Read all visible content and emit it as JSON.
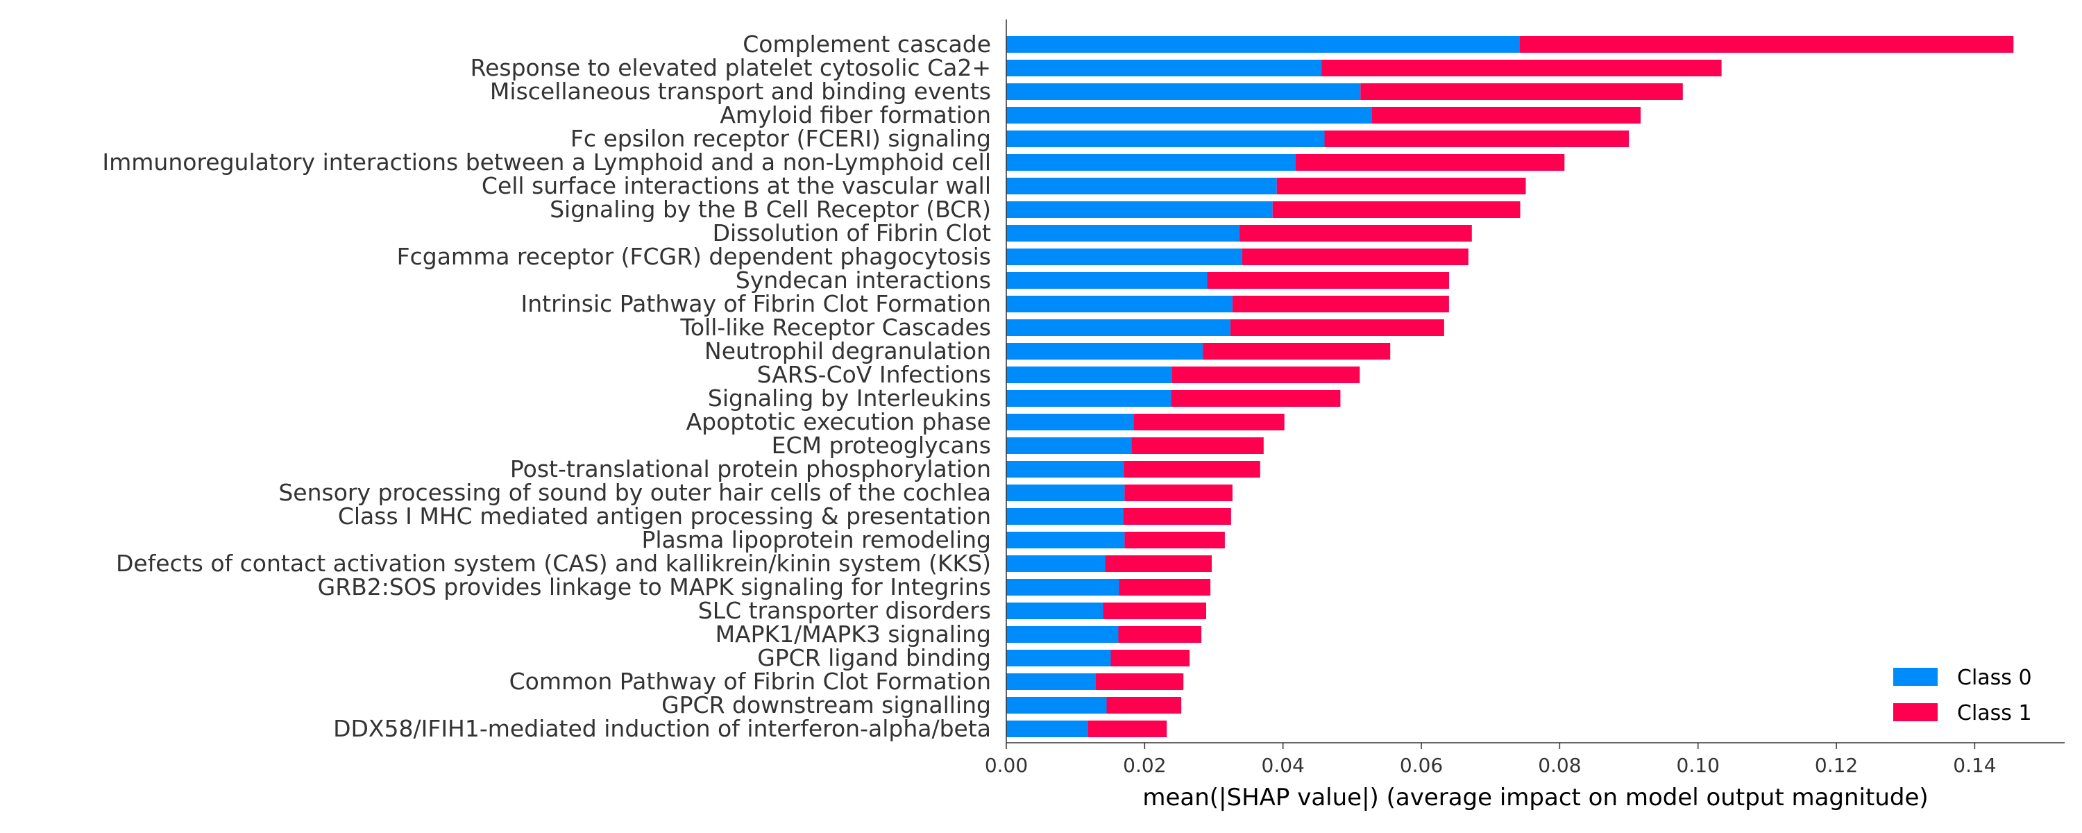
{
  "chart_data": {
    "type": "bar",
    "orientation": "horizontal",
    "stacked": true,
    "categories": [
      "Complement cascade",
      "Response to elevated platelet cytosolic Ca2+",
      "Miscellaneous transport and binding events",
      "Amyloid fiber formation",
      "Fc epsilon receptor (FCERI) signaling",
      "Immunoregulatory interactions between a Lymphoid and a non-Lymphoid cell",
      "Cell surface interactions at the vascular wall",
      "Signaling by the B Cell Receptor (BCR)",
      "Dissolution of Fibrin Clot",
      "Fcgamma receptor (FCGR) dependent phagocytosis",
      "Syndecan interactions",
      "Intrinsic Pathway of Fibrin Clot Formation",
      "Toll-like Receptor Cascades",
      "Neutrophil degranulation",
      "SARS-CoV Infections",
      "Signaling by Interleukins",
      "Apoptotic execution phase",
      "ECM proteoglycans",
      "Post-translational protein phosphorylation",
      "Sensory processing of sound by outer hair cells of the cochlea",
      "Class I MHC mediated antigen processing & presentation",
      "Plasma lipoprotein remodeling",
      "Defects of contact activation system (CAS) and kallikrein/kinin system (KKS)",
      "GRB2:SOS provides linkage to MAPK signaling for Integrins ",
      "SLC transporter disorders",
      "MAPK1/MAPK3 signaling",
      "GPCR ligand binding",
      "Common Pathway of Fibrin Clot Formation",
      "GPCR downstream signalling",
      "DDX58/IFIH1-mediated induction of interferon-alpha/beta"
    ],
    "series": [
      {
        "name": "Class 0",
        "color": "#008bfb",
        "values": [
          0.0742,
          0.0456,
          0.0512,
          0.0528,
          0.046,
          0.0418,
          0.0391,
          0.0385,
          0.0337,
          0.0341,
          0.029,
          0.0327,
          0.0324,
          0.0284,
          0.0239,
          0.0238,
          0.0184,
          0.0181,
          0.017,
          0.0171,
          0.0169,
          0.0171,
          0.0143,
          0.0163,
          0.014,
          0.0162,
          0.0151,
          0.0129,
          0.0145,
          0.0118
        ]
      },
      {
        "name": "Class 1",
        "color": "#ff0051",
        "values": [
          0.0714,
          0.0578,
          0.0466,
          0.0389,
          0.044,
          0.0389,
          0.036,
          0.0358,
          0.0336,
          0.0327,
          0.035,
          0.0313,
          0.0309,
          0.0271,
          0.0272,
          0.0245,
          0.0218,
          0.0191,
          0.0197,
          0.0156,
          0.0156,
          0.0145,
          0.0154,
          0.0132,
          0.0149,
          0.012,
          0.0114,
          0.0127,
          0.0108,
          0.0114
        ]
      }
    ],
    "xlabel": "mean(|SHAP value|) (average impact on model output magnitude)",
    "xlim": [
      0,
      0.153
    ],
    "xticks": [
      0.0,
      0.02,
      0.04,
      0.06,
      0.08,
      0.1,
      0.12,
      0.14
    ],
    "xtick_labels": [
      "0.00",
      "0.02",
      "0.04",
      "0.06",
      "0.08",
      "0.10",
      "0.12",
      "0.14"
    ],
    "legend_position": "bottom-right",
    "grid": false
  }
}
